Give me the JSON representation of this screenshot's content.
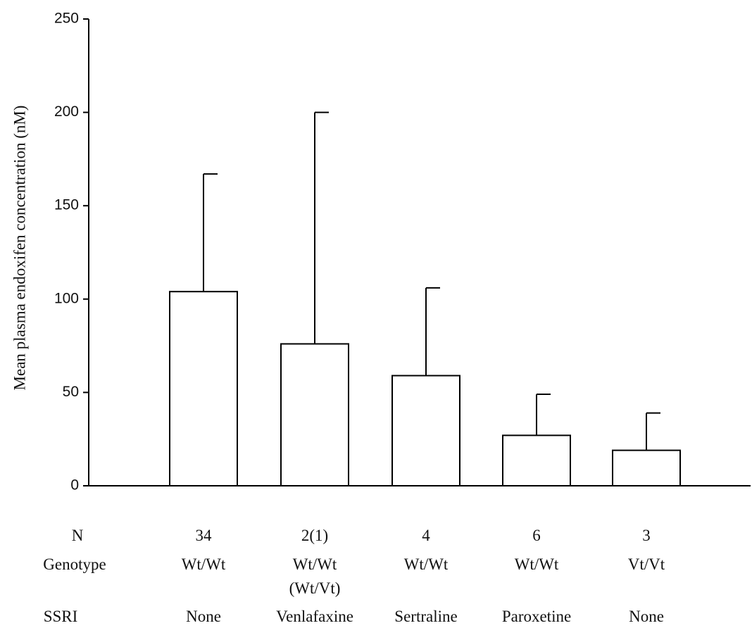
{
  "chart_data": {
    "type": "bar",
    "ylabel": "Mean plasma endoxifen concentration (nM)",
    "xlabel": "",
    "ylim": [
      0,
      250
    ],
    "yticks": [
      0,
      50,
      100,
      150,
      200,
      250
    ],
    "grid": false,
    "legend": "none",
    "bar_fill": "#ffffff",
    "bar_stroke": "#000000",
    "values": [
      104,
      76,
      59,
      27,
      19
    ],
    "error_upper": [
      167,
      200,
      106,
      49,
      39
    ],
    "row_labels": [
      "N",
      "Genotype",
      "SSRI"
    ],
    "columns": [
      {
        "n": "34",
        "genotype": "Wt/Wt",
        "genotype2": "",
        "ssri": "None"
      },
      {
        "n": "2(1)",
        "genotype": "Wt/Wt",
        "genotype2": "(Wt/Vt)",
        "ssri": "Venlafaxine"
      },
      {
        "n": "4",
        "genotype": "Wt/Wt",
        "genotype2": "",
        "ssri": "Sertraline"
      },
      {
        "n": "6",
        "genotype": "Wt/Wt",
        "genotype2": "",
        "ssri": "Paroxetine"
      },
      {
        "n": "3",
        "genotype": "Vt/Vt",
        "genotype2": "",
        "ssri": "None"
      }
    ]
  }
}
